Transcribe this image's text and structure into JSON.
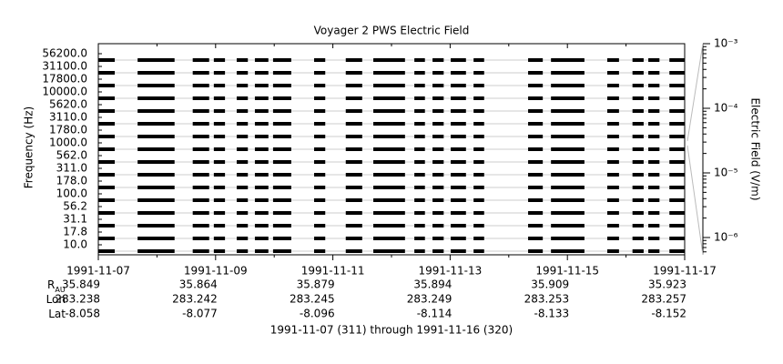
{
  "chart_data": {
    "type": "spectral-strip",
    "title": "Voyager 2 PWS Electric Field",
    "ylabel": "Frequency (Hz)",
    "channels": [
      "56200.0",
      "31100.0",
      "17800.0",
      "10000.0",
      "5620.0",
      "3110.0",
      "1780.0",
      "1000.0",
      "562.0",
      "311.0",
      "178.0",
      "100.0",
      "56.2",
      "31.1",
      "17.8",
      "10.0"
    ],
    "xlim": [
      "1991-11-07",
      "1991-11-17"
    ],
    "xticks": [
      "1991-11-07",
      "1991-11-09",
      "1991-11-11",
      "1991-11-13",
      "1991-11-15",
      "1991-11-17"
    ],
    "coverage": [
      [
        0.0,
        0.28
      ],
      [
        0.67,
        1.3
      ],
      [
        1.61,
        1.89
      ],
      [
        1.97,
        2.16
      ],
      [
        2.36,
        2.55
      ],
      [
        2.67,
        2.9
      ],
      [
        2.98,
        3.29
      ],
      [
        3.68,
        3.87
      ],
      [
        4.22,
        4.5
      ],
      [
        4.69,
        5.23
      ],
      [
        5.39,
        5.57
      ],
      [
        5.7,
        5.89
      ],
      [
        6.01,
        6.27
      ],
      [
        6.4,
        6.58
      ],
      [
        7.33,
        7.58
      ],
      [
        7.72,
        8.29
      ],
      [
        8.68,
        8.88
      ],
      [
        9.11,
        9.3
      ],
      [
        9.38,
        9.57
      ],
      [
        9.74,
        10.0
      ]
    ],
    "color": "#000000",
    "y2label": "Electric Field (V/m)",
    "y2log": true,
    "y2lim": [
      5.4e-07,
      0.001
    ],
    "y2ticks": [
      {
        "value": 0.001,
        "label": "10⁻³"
      },
      {
        "value": 0.0001,
        "label": "10⁻⁴"
      },
      {
        "value": 1e-05,
        "label": "10⁻⁵"
      },
      {
        "value": 1e-06,
        "label": "10⁻⁶"
      }
    ],
    "ephemeris": [
      {
        "label": "R",
        "sub": "AU",
        "values": [
          35.849,
          35.864,
          35.879,
          35.894,
          35.909,
          35.923
        ]
      },
      {
        "label": "Lon",
        "values": [
          283.238,
          283.242,
          283.245,
          283.249,
          283.253,
          283.257
        ]
      },
      {
        "label": "Lat",
        "values": [
          -8.058,
          -8.077,
          -8.096,
          -8.114,
          -8.133,
          -8.152
        ]
      }
    ],
    "footer": "1991-11-07 (311) through 1991-11-16 (320)"
  }
}
